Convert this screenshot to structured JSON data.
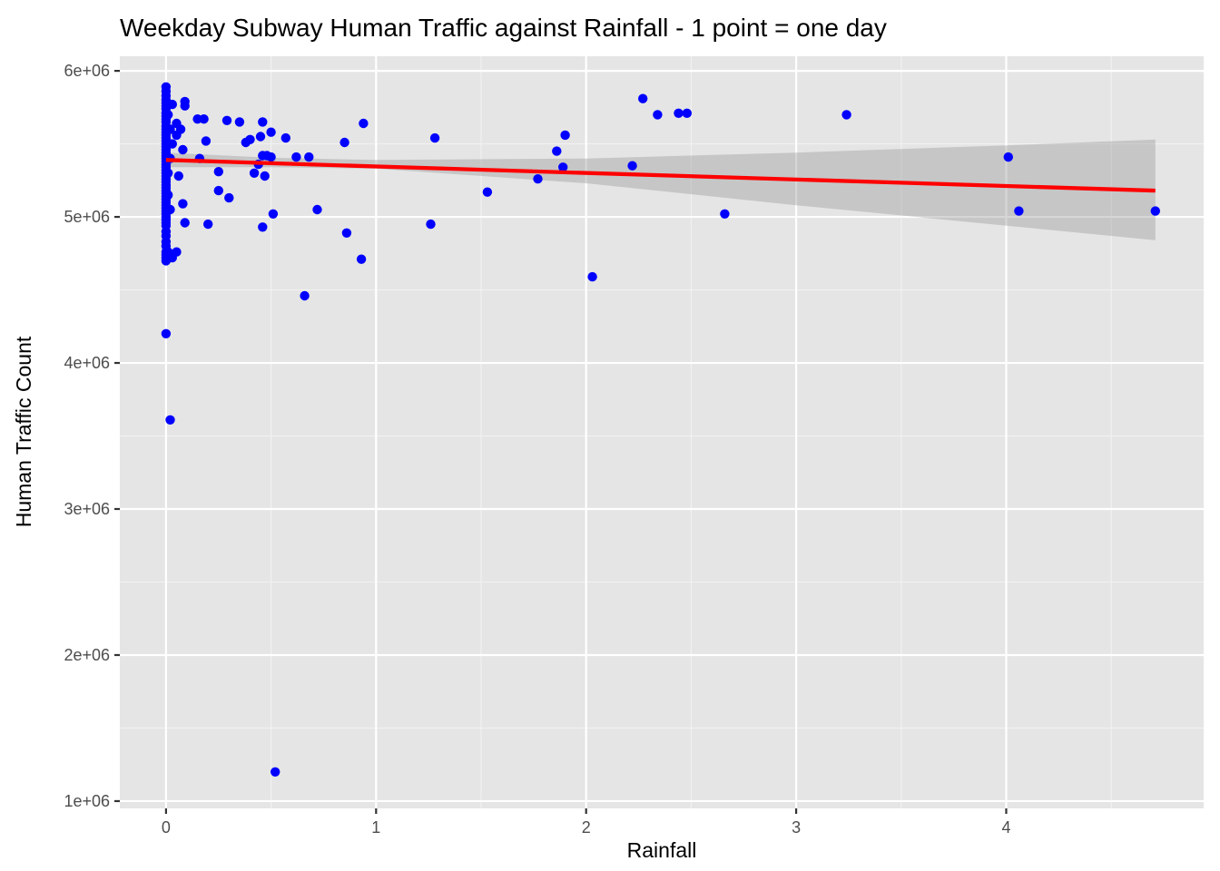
{
  "chart_data": {
    "type": "scatter",
    "title": "Weekday Subway Human Traffic against Rainfall - 1 point = one day",
    "xlabel": "Rainfall",
    "ylabel": "Human Traffic Count",
    "xlim": [
      -0.22,
      4.94
    ],
    "ylim": [
      950000,
      6100000
    ],
    "x_ticks": [
      0,
      1,
      2,
      3,
      4
    ],
    "x_tick_labels": [
      "0",
      "1",
      "2",
      "3",
      "4"
    ],
    "x_minor": [
      0.5,
      1.5,
      2.5,
      3.5,
      4.5
    ],
    "y_ticks": [
      1000000,
      2000000,
      3000000,
      4000000,
      5000000,
      6000000
    ],
    "y_tick_labels": [
      "1e+06",
      "2e+06",
      "3e+06",
      "4e+06",
      "5e+06",
      "6e+06"
    ],
    "y_minor": [
      1500000,
      2500000,
      3500000,
      4500000,
      5500000
    ],
    "grid": true,
    "legend": "none",
    "colors": {
      "points": "#0000ff",
      "trend_line": "#ff0000",
      "confidence_band": "#999999",
      "panel_background": "#e5e5e5"
    },
    "points": [
      [
        0,
        5890000
      ],
      [
        0,
        5860000
      ],
      [
        0,
        5830000
      ],
      [
        0,
        5800000
      ],
      [
        0,
        5780000
      ],
      [
        0,
        5760000
      ],
      [
        0,
        5740000
      ],
      [
        0,
        5710000
      ],
      [
        0,
        5690000
      ],
      [
        0,
        5670000
      ],
      [
        0,
        5650000
      ],
      [
        0,
        5620000
      ],
      [
        0,
        5600000
      ],
      [
        0,
        5580000
      ],
      [
        0,
        5560000
      ],
      [
        0,
        5540000
      ],
      [
        0,
        5520000
      ],
      [
        0,
        5500000
      ],
      [
        0,
        5480000
      ],
      [
        0,
        5460000
      ],
      [
        0,
        5440000
      ],
      [
        0,
        5420000
      ],
      [
        0,
        5400000
      ],
      [
        0,
        5380000
      ],
      [
        0,
        5360000
      ],
      [
        0,
        5340000
      ],
      [
        0,
        5320000
      ],
      [
        0,
        5300000
      ],
      [
        0,
        5280000
      ],
      [
        0,
        5260000
      ],
      [
        0,
        5240000
      ],
      [
        0,
        5220000
      ],
      [
        0,
        5200000
      ],
      [
        0,
        5180000
      ],
      [
        0,
        5160000
      ],
      [
        0,
        5140000
      ],
      [
        0,
        5120000
      ],
      [
        0,
        5100000
      ],
      [
        0,
        5080000
      ],
      [
        0,
        5060000
      ],
      [
        0,
        5040000
      ],
      [
        0,
        5020000
      ],
      [
        0,
        5000000
      ],
      [
        0,
        4980000
      ],
      [
        0,
        4960000
      ],
      [
        0,
        4940000
      ],
      [
        0,
        4900000
      ],
      [
        0,
        4870000
      ],
      [
        0,
        4830000
      ],
      [
        0,
        4800000
      ],
      [
        0,
        4760000
      ],
      [
        0,
        4740000
      ],
      [
        0,
        4720000
      ],
      [
        0,
        4700000
      ],
      [
        0,
        4200000
      ],
      [
        0.01,
        5700000
      ],
      [
        0.01,
        5500000
      ],
      [
        0.01,
        5300000
      ],
      [
        0.01,
        5150000
      ],
      [
        0.01,
        4760000
      ],
      [
        0.02,
        5600000
      ],
      [
        0.02,
        5400000
      ],
      [
        0.02,
        5050000
      ],
      [
        0.02,
        3610000
      ],
      [
        0.03,
        5770000
      ],
      [
        0.03,
        5500000
      ],
      [
        0.03,
        4720000
      ],
      [
        0.05,
        5640000
      ],
      [
        0.05,
        5560000
      ],
      [
        0.05,
        4760000
      ],
      [
        0.06,
        5280000
      ],
      [
        0.07,
        5600000
      ],
      [
        0.08,
        5460000
      ],
      [
        0.08,
        5090000
      ],
      [
        0.09,
        4960000
      ],
      [
        0.09,
        5790000
      ],
      [
        0.09,
        5760000
      ],
      [
        0.15,
        5670000
      ],
      [
        0.16,
        5400000
      ],
      [
        0.18,
        5670000
      ],
      [
        0.19,
        5520000
      ],
      [
        0.2,
        4950000
      ],
      [
        0.25,
        5310000
      ],
      [
        0.25,
        5180000
      ],
      [
        0.29,
        5660000
      ],
      [
        0.3,
        5130000
      ],
      [
        0.35,
        5650000
      ],
      [
        0.38,
        5510000
      ],
      [
        0.4,
        5530000
      ],
      [
        0.42,
        5300000
      ],
      [
        0.44,
        5360000
      ],
      [
        0.45,
        5550000
      ],
      [
        0.46,
        5650000
      ],
      [
        0.46,
        5420000
      ],
      [
        0.46,
        4930000
      ],
      [
        0.47,
        5280000
      ],
      [
        0.48,
        5420000
      ],
      [
        0.5,
        5580000
      ],
      [
        0.5,
        5410000
      ],
      [
        0.51,
        5020000
      ],
      [
        0.52,
        1200000
      ],
      [
        0.57,
        5540000
      ],
      [
        0.62,
        5410000
      ],
      [
        0.66,
        4460000
      ],
      [
        0.68,
        5410000
      ],
      [
        0.72,
        5050000
      ],
      [
        0.85,
        5510000
      ],
      [
        0.86,
        4890000
      ],
      [
        0.93,
        4710000
      ],
      [
        0.94,
        5640000
      ],
      [
        1.26,
        4950000
      ],
      [
        1.28,
        5540000
      ],
      [
        1.53,
        5170000
      ],
      [
        1.77,
        5260000
      ],
      [
        1.86,
        5450000
      ],
      [
        1.89,
        5340000
      ],
      [
        1.9,
        5560000
      ],
      [
        2.03,
        4590000
      ],
      [
        2.22,
        5350000
      ],
      [
        2.27,
        5810000
      ],
      [
        2.34,
        5700000
      ],
      [
        2.44,
        5710000
      ],
      [
        2.48,
        5710000
      ],
      [
        2.66,
        5020000
      ],
      [
        3.24,
        5700000
      ],
      [
        4.01,
        5410000
      ],
      [
        4.06,
        5040000
      ],
      [
        4.71,
        5040000
      ]
    ],
    "trend_line": {
      "x": [
        0,
        4.71
      ],
      "y": [
        5390000,
        5180000
      ]
    },
    "confidence_band": {
      "x": [
        0,
        0.5,
        1,
        2,
        3,
        4,
        4.71
      ],
      "upper": [
        5440000,
        5405000,
        5390000,
        5400000,
        5440000,
        5490000,
        5530000
      ],
      "lower": [
        5340000,
        5340000,
        5330000,
        5230000,
        5080000,
        4940000,
        4840000
      ]
    }
  }
}
